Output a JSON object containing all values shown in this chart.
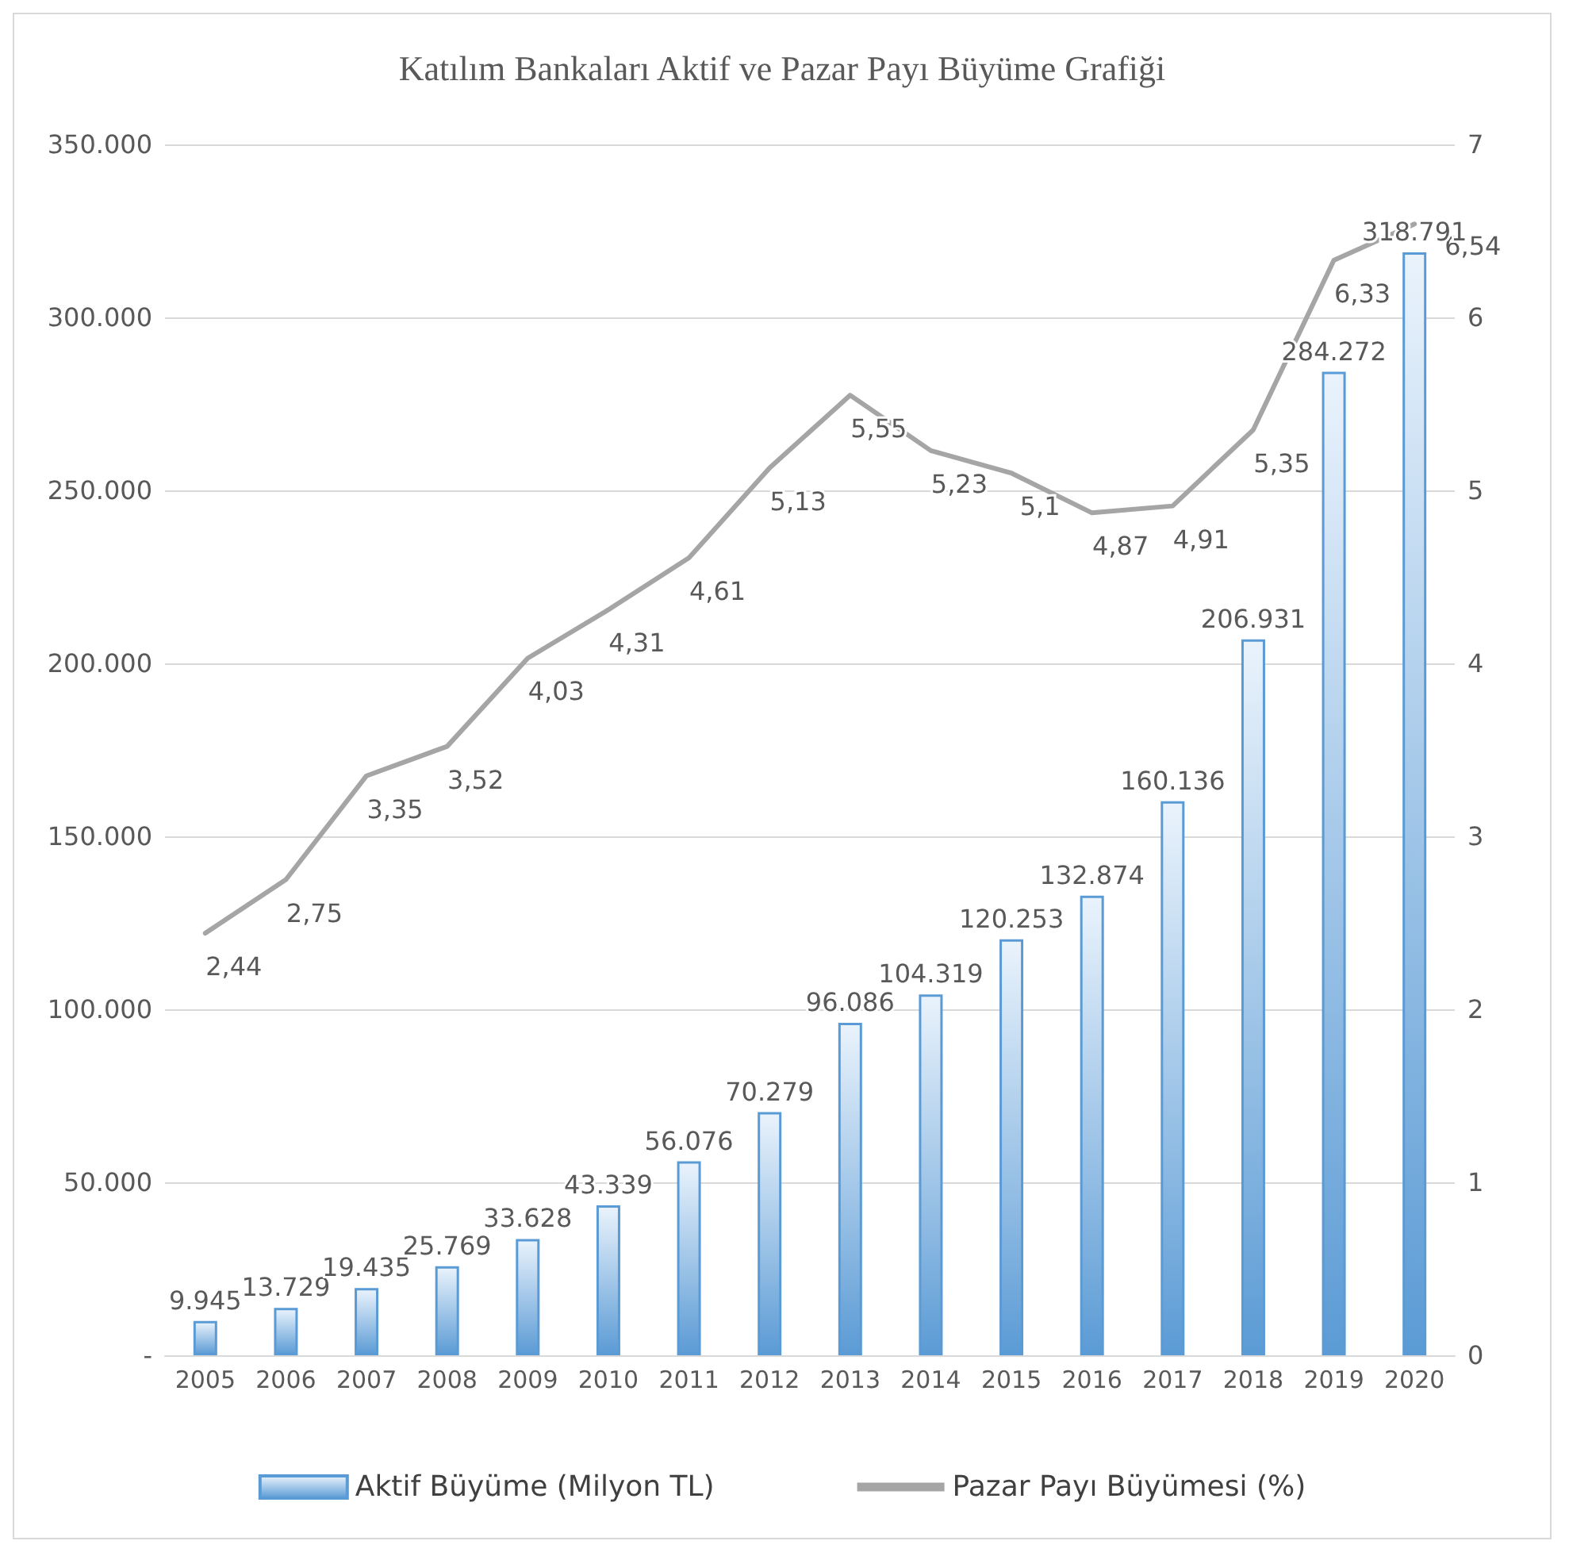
{
  "chart_data": {
    "type": "bar",
    "title": "Katılım Bankaları Aktif ve Pazar Payı Büyüme Grafiği",
    "categories": [
      "2005",
      "2006",
      "2007",
      "2008",
      "2009",
      "2010",
      "2011",
      "2012",
      "2013",
      "2014",
      "2015",
      "2016",
      "2017",
      "2018",
      "2019",
      "2020"
    ],
    "series": [
      {
        "name": "Aktif Büyüme (Milyon TL)",
        "color": "#5b9bd5",
        "values": [
          9945,
          13729,
          19435,
          25769,
          33628,
          43339,
          56076,
          70279,
          96086,
          104319,
          120253,
          132874,
          160136,
          206931,
          284272,
          318791
        ],
        "value_labels": [
          "9.945",
          "13.729",
          "19.435",
          "25.769",
          "33.628",
          "43.339",
          "56.076",
          "70.279",
          "96.086",
          "104.319",
          "120.253",
          "132.874",
          "160.136",
          "206.931",
          "284.272",
          "318.791"
        ]
      },
      {
        "name": "Pazar Payı Büyümesi (%)",
        "type": "line",
        "axis": "y2",
        "color": "#a5a5a5",
        "values": [
          2.44,
          2.75,
          3.35,
          3.52,
          4.03,
          4.31,
          4.61,
          5.13,
          5.55,
          5.23,
          5.1,
          4.87,
          4.91,
          5.35,
          6.33,
          6.54
        ],
        "value_labels": [
          "2,44",
          "2,75",
          "3,35",
          "3,52",
          "4,03",
          "4,31",
          "4,61",
          "5,13",
          "5,55",
          "5,23",
          "5,1",
          "4,87",
          "4,91",
          "5,35",
          "6,33",
          "6,54"
        ]
      }
    ],
    "ylim": [
      0,
      350000
    ],
    "yticks": [
      {
        "value": 0,
        "label": "-"
      },
      {
        "value": 50000,
        "label": "50.000"
      },
      {
        "value": 100000,
        "label": "100.000"
      },
      {
        "value": 150000,
        "label": "150.000"
      },
      {
        "value": 200000,
        "label": "200.000"
      },
      {
        "value": 250000,
        "label": "250.000"
      },
      {
        "value": 300000,
        "label": "300.000"
      },
      {
        "value": 350000,
        "label": "350.000"
      }
    ],
    "y2lim": [
      0,
      7
    ],
    "y2ticks": [
      0,
      1,
      2,
      3,
      4,
      5,
      6,
      7
    ],
    "grid": "y",
    "legend": "bottom",
    "marker": "none",
    "line_style": "solid"
  }
}
